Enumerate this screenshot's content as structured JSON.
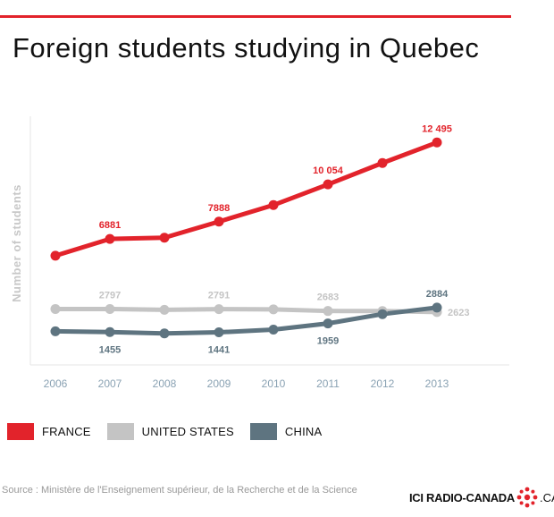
{
  "title": "Foreign students studying in Quebec",
  "chart_data": {
    "type": "line",
    "title": "Foreign students studying in Quebec",
    "ylabel": "Number of students",
    "xlabel": "",
    "x": [
      "2006",
      "2007",
      "2008",
      "2009",
      "2010",
      "2011",
      "2012",
      "2013"
    ],
    "ylim": [
      1000,
      13500
    ],
    "grid": false,
    "legend_position": "bottom",
    "series": [
      {
        "name": "FRANCE",
        "color": "#e2232b",
        "values": [
          5900,
          6881,
          6950,
          7888,
          8850,
          10054,
          11300,
          12495
        ],
        "labels": [
          {
            "index": 1,
            "text": "6881",
            "position": "above"
          },
          {
            "index": 3,
            "text": "7888",
            "position": "above"
          },
          {
            "index": 5,
            "text": "10 054",
            "position": "above"
          },
          {
            "index": 7,
            "text": "12 495",
            "position": "above"
          }
        ]
      },
      {
        "name": "UNITED STATES",
        "color": "#c4c4c4",
        "values": [
          2800,
          2797,
          2750,
          2791,
          2780,
          2683,
          2680,
          2623
        ],
        "labels": [
          {
            "index": 1,
            "text": "2797",
            "position": "above"
          },
          {
            "index": 3,
            "text": "2791",
            "position": "above"
          },
          {
            "index": 5,
            "text": "2683",
            "position": "above"
          },
          {
            "index": 7,
            "text": "2623",
            "position": "right"
          }
        ]
      },
      {
        "name": "CHINA",
        "color": "#5e7480",
        "values": [
          1500,
          1455,
          1380,
          1441,
          1600,
          1959,
          2500,
          2884
        ],
        "labels": [
          {
            "index": 1,
            "text": "1455",
            "position": "below"
          },
          {
            "index": 3,
            "text": "1441",
            "position": "below"
          },
          {
            "index": 5,
            "text": "1959",
            "position": "below"
          },
          {
            "index": 7,
            "text": "2884",
            "position": "above"
          }
        ]
      }
    ]
  },
  "source": "Source : Ministère de l'Enseignement supérieur, de la Recherche et de la Science",
  "brand": {
    "name": "ICI RADIO-CANADA",
    "tld": ".CA"
  }
}
